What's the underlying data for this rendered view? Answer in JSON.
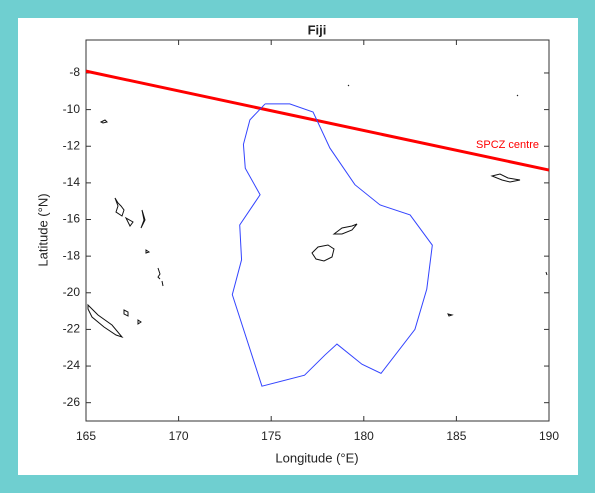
{
  "chart_data": {
    "type": "map",
    "title": "Fiji",
    "x_label": "Longitude (°E)",
    "y_label": "Latitude (°N)",
    "xlim": [
      165,
      190
    ],
    "ylim": [
      -27,
      -6.2
    ],
    "xticks": [
      165,
      170,
      175,
      180,
      185,
      190
    ],
    "yticks": [
      -26,
      -24,
      -22,
      -20,
      -18,
      -16,
      -14,
      -12,
      -10,
      -8
    ],
    "series": [
      {
        "name": "SPCZ centre",
        "color": "#ff0000",
        "x": [
          165,
          190
        ],
        "y": [
          -7.9,
          -13.3
        ]
      },
      {
        "color": "#3344ff",
        "x": [
          174.67,
          176.0,
          177.26,
          178.17,
          179.52,
          180.87,
          182.5,
          183.7,
          183.4,
          182.76,
          180.93,
          179.9,
          178.55,
          177.9,
          176.8,
          174.5,
          172.9,
          173.4,
          173.3,
          174.4,
          173.6,
          173.5,
          173.85,
          174.67
        ],
        "y": [
          -9.69,
          -9.69,
          -10.13,
          -12.1,
          -14.1,
          -15.2,
          -15.75,
          -17.4,
          -19.8,
          -22.0,
          -24.4,
          -23.9,
          -22.8,
          -23.4,
          -24.5,
          -25.1,
          -20.1,
          -18.2,
          -16.3,
          -14.65,
          -13.2,
          -11.9,
          -10.56,
          -9.69
        ]
      }
    ]
  }
}
